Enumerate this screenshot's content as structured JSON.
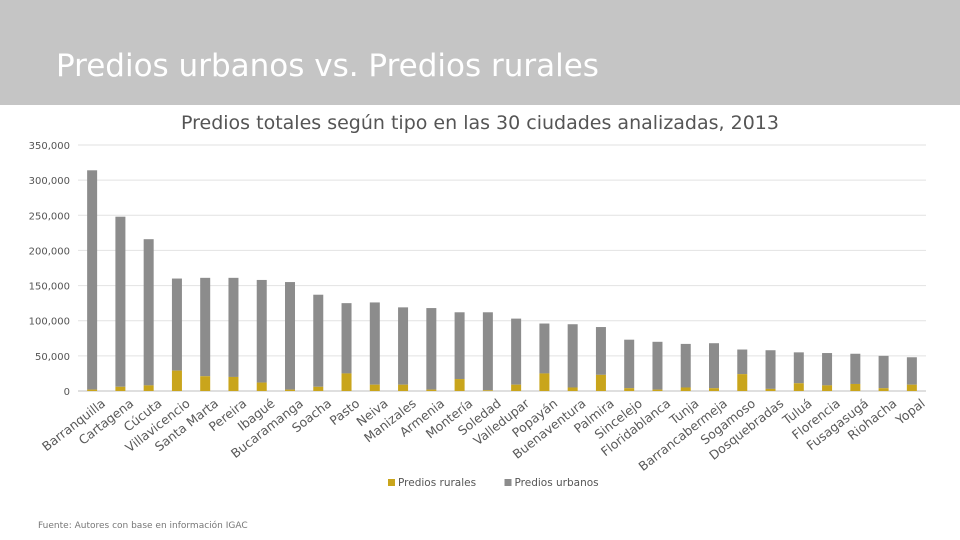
{
  "header": {
    "title": "Predios urbanos vs. Predios rurales"
  },
  "source": "Fuente: Autores con base en información IGAC",
  "colors": {
    "header_bg": "#c5c5c5",
    "rural": "#c9a51c",
    "urbano": "#8c8c8c"
  },
  "chart_data": {
    "type": "bar",
    "stacked": true,
    "title": "Predios totales según tipo en las 30 ciudades analizadas, 2013",
    "xlabel": "",
    "ylabel": "",
    "ylim": [
      0,
      350000
    ],
    "yticks": [
      "0",
      "50,000",
      "100,000",
      "150,000",
      "200,000",
      "250,000",
      "300,000",
      "350,000"
    ],
    "grid": true,
    "legend_position": "bottom",
    "categories": [
      "Barranquilla",
      "Cartagena",
      "Cúcuta",
      "Villavicencio",
      "Santa Marta",
      "Pereira",
      "Ibagué",
      "Bucaramanga",
      "Soacha",
      "Pasto",
      "Neiva",
      "Manizales",
      "Armenia",
      "Montería",
      "Soledad",
      "Valledupar",
      "Popayán",
      "Buenaventura",
      "Palmira",
      "Sincelejo",
      "Floridablanca",
      "Tunja",
      "Barrancabermeja",
      "Sogamoso",
      "Dosquebradas",
      "Tuluá",
      "Florencia",
      "Fusagasugá",
      "Riohacha",
      "Yopal"
    ],
    "series": [
      {
        "name": "Predios rurales",
        "values": [
          2000,
          6000,
          8000,
          29000,
          21000,
          20000,
          12000,
          2000,
          6000,
          25000,
          9000,
          9000,
          2000,
          17000,
          1000,
          9000,
          25000,
          5000,
          23000,
          4000,
          2000,
          5000,
          4000,
          24000,
          3000,
          11000,
          8000,
          10000,
          4000,
          9000
        ]
      },
      {
        "name": "Predios urbanos",
        "values": [
          312000,
          242000,
          208000,
          131000,
          140000,
          141000,
          146000,
          153000,
          131000,
          100000,
          117000,
          110000,
          116000,
          95000,
          111000,
          94000,
          71000,
          90000,
          68000,
          69000,
          68000,
          62000,
          64000,
          35000,
          55000,
          44000,
          46000,
          43000,
          46000,
          39000
        ]
      }
    ]
  }
}
